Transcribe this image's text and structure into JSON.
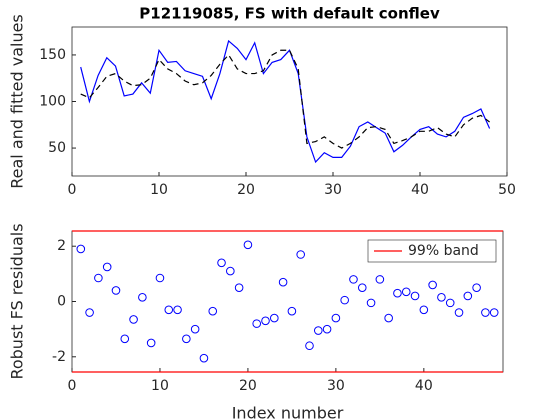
{
  "chart_data": [
    {
      "type": "line",
      "title": "P12119085, FS with default conflev",
      "ylabel": "Real and fitted values",
      "x": [
        1,
        2,
        3,
        4,
        5,
        6,
        7,
        8,
        9,
        10,
        11,
        12,
        13,
        14,
        15,
        16,
        17,
        18,
        19,
        20,
        21,
        22,
        23,
        24,
        25,
        26,
        27,
        28,
        29,
        30,
        31,
        32,
        33,
        34,
        35,
        36,
        37,
        38,
        39,
        40,
        41,
        42,
        43,
        44,
        45,
        46,
        47,
        48
      ],
      "series": [
        {
          "color": "#0000ff",
          "dash": false,
          "values": [
            137,
            100,
            128,
            147,
            138,
            106,
            108,
            120,
            109,
            155,
            142,
            143,
            133,
            130,
            127,
            103,
            130,
            165,
            157,
            145,
            163,
            130,
            142,
            145,
            155,
            130,
            62,
            35,
            45,
            40,
            40,
            52,
            73,
            78,
            72,
            66,
            46,
            53,
            62,
            70,
            73,
            65,
            62,
            68,
            83,
            87,
            92,
            71
          ]
        },
        {
          "color": "#000000",
          "dash": true,
          "values": [
            108,
            104,
            115,
            127,
            130,
            122,
            117,
            118,
            125,
            145,
            135,
            130,
            122,
            118,
            120,
            128,
            140,
            150,
            135,
            130,
            130,
            133,
            150,
            155,
            155,
            135,
            55,
            57,
            62,
            55,
            50,
            55,
            62,
            72,
            73,
            70,
            55,
            58,
            62,
            68,
            68,
            72,
            65,
            62,
            75,
            82,
            85,
            78
          ]
        }
      ],
      "xlim": [
        0,
        50
      ],
      "xticks": [
        0,
        10,
        20,
        30,
        40,
        50
      ],
      "ylim": [
        20,
        180
      ],
      "yticks": [
        50,
        100,
        150
      ]
    },
    {
      "type": "scatter",
      "ylabel": "Robust FS residuals",
      "xlabel": "Index number",
      "x": [
        1,
        2,
        3,
        4,
        5,
        6,
        7,
        8,
        9,
        10,
        11,
        12,
        13,
        14,
        15,
        16,
        17,
        18,
        19,
        20,
        21,
        22,
        23,
        24,
        25,
        26,
        27,
        28,
        29,
        30,
        31,
        32,
        33,
        34,
        35,
        36,
        37,
        38,
        39,
        40,
        41,
        42,
        43,
        44,
        45,
        46,
        47,
        48
      ],
      "values": [
        1.9,
        -0.4,
        0.85,
        1.25,
        0.4,
        -1.35,
        -0.65,
        0.15,
        -1.5,
        0.85,
        -0.3,
        -0.3,
        -1.35,
        -1.0,
        -2.05,
        -0.35,
        1.4,
        1.1,
        0.5,
        2.05,
        -0.8,
        -0.7,
        -0.6,
        0.7,
        -0.35,
        1.7,
        -1.6,
        -1.05,
        -1.0,
        -0.6,
        0.05,
        0.8,
        0.5,
        -0.05,
        0.8,
        -0.6,
        0.3,
        0.35,
        0.2,
        -0.3,
        0.6,
        0.15,
        -0.05,
        -0.4,
        0.2,
        0.5,
        -0.4,
        -0.4
      ],
      "color": "#0000ff",
      "band": {
        "name": "99% band",
        "color": "#ff0000",
        "values": [
          2.55,
          -2.55
        ]
      },
      "xlim": [
        0,
        49
      ],
      "xticks": [
        0,
        10,
        20,
        30,
        40
      ],
      "ylim": [
        -2.55,
        2.55
      ],
      "yticks": [
        -2,
        0,
        2
      ]
    }
  ]
}
